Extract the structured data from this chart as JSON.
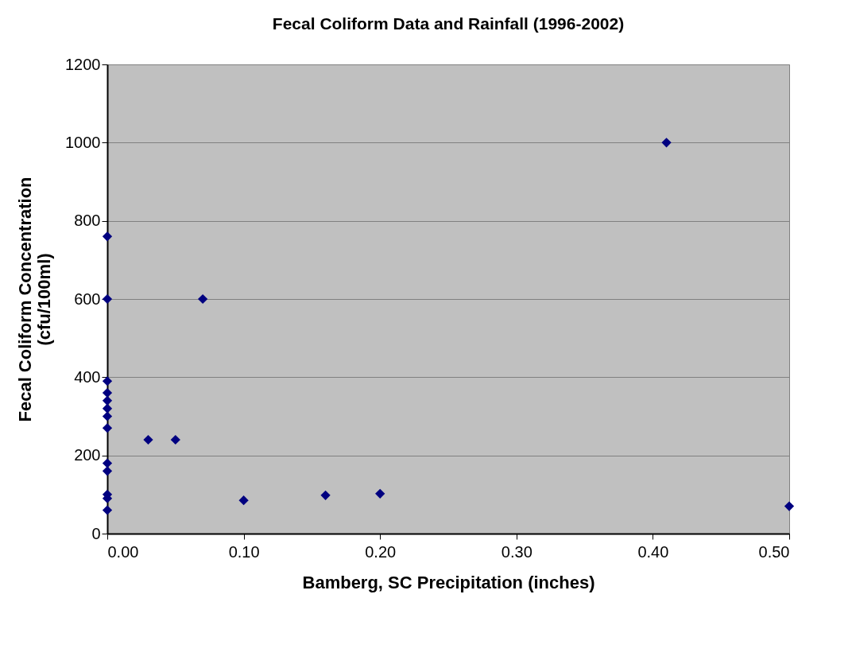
{
  "chart_data": {
    "type": "scatter",
    "title": "Fecal Coliform Data and Rainfall (1996-2002)",
    "xlabel": "Bamberg, SC Precipitation (inches)",
    "ylabel": "Fecal Coliform Concentration\n(cfu/100ml)",
    "x": [
      0,
      0,
      0,
      0,
      0,
      0,
      0,
      0,
      0,
      0,
      0,
      0,
      0,
      0.03,
      0.05,
      0.07,
      0.1,
      0.16,
      0.2,
      0.41,
      0.5
    ],
    "series": [
      {
        "color": "#000080",
        "values": [
          760,
          600,
          390,
          360,
          340,
          320,
          300,
          270,
          180,
          160,
          100,
          90,
          60,
          240,
          240,
          600,
          85,
          98,
          102,
          1000,
          70
        ]
      }
    ],
    "xlim": [
      0,
      0.5
    ],
    "ylim": [
      0,
      1200
    ],
    "xticks": [
      {
        "value": 0,
        "label": "0.00"
      },
      {
        "value": 0.1,
        "label": "0.10"
      },
      {
        "value": 0.2,
        "label": "0.20"
      },
      {
        "value": 0.3,
        "label": "0.30"
      },
      {
        "value": 0.4,
        "label": "0.40"
      },
      {
        "value": 0.5,
        "label": "0.50"
      }
    ],
    "yticks": [
      0,
      200,
      400,
      600,
      800,
      1000,
      1200
    ],
    "grid": "y",
    "marker": "diamond",
    "legend": false
  }
}
